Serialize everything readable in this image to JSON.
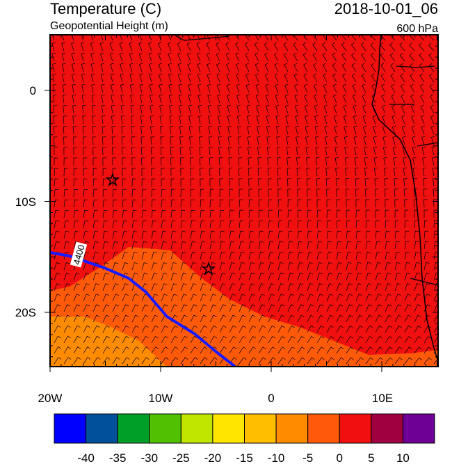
{
  "header": {
    "title": "Temperature (C)",
    "subtitle": "Geopotential Height (m)",
    "time": "2018-10-01_06",
    "level": "600 hPa"
  },
  "map": {
    "y_labels": [
      "0",
      "10S",
      "20S"
    ],
    "x_labels": [
      "20W",
      "10W",
      "0",
      "10E"
    ],
    "contour_label": "4400"
  },
  "colorbar": {
    "colors": [
      "#0000ff",
      "#00509c",
      "#00a028",
      "#50c000",
      "#c0e600",
      "#ffe600",
      "#ffbe00",
      "#ff8c00",
      "#ff5a0a",
      "#f01010",
      "#a00040",
      "#6e0096"
    ],
    "labels": [
      "-40",
      "-35",
      "-30",
      "-25",
      "-20",
      "-15",
      "-10",
      "-5",
      "0",
      "5",
      "10"
    ]
  }
}
